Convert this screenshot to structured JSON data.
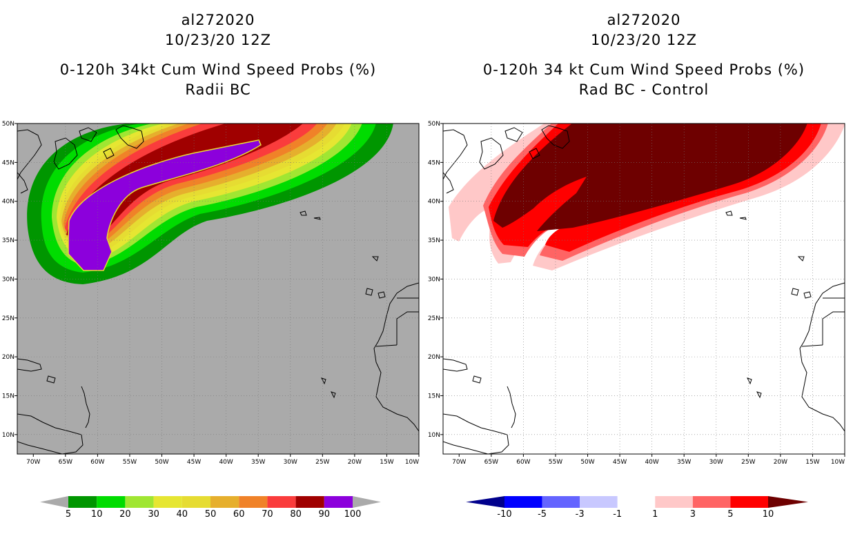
{
  "left_panel": {
    "title_line1": "al272020",
    "title_line2": "10/23/20 12Z",
    "title_line3": "0-120h 34kt Cum Wind Speed Probs (%)",
    "title_line4": "Radii BC",
    "background": "#aaaaaa",
    "colorbar": {
      "colors": [
        "#009600",
        "#00dc00",
        "#a0e632",
        "#e6e632",
        "#e6dc32",
        "#e6af2d",
        "#f08228",
        "#fa3c3c",
        "#a00000",
        "#8c00dc"
      ],
      "labels": [
        "5",
        "10",
        "20",
        "30",
        "40",
        "50",
        "60",
        "70",
        "80",
        "90",
        "100"
      ]
    }
  },
  "right_panel": {
    "title_line1": "al272020",
    "title_line2": "10/23/20 12Z",
    "title_line3": "0-120h 34 kt Cum Wind Speed Probs (%)",
    "title_line4": "Rad BC - Control",
    "background": "#ffffff",
    "colorbar": {
      "colors": [
        "#00008c",
        "#0000ff",
        "#6464ff",
        "#c8c8ff",
        "#ffffff",
        "#ffc8c8",
        "#ff6464",
        "#ff0000",
        "#6e0000"
      ],
      "labels": [
        "-10",
        "-5",
        "-3",
        "-1",
        "1",
        "3",
        "5",
        "10"
      ]
    }
  },
  "axes": {
    "lon_labels": [
      "70W",
      "65W",
      "60W",
      "55W",
      "50W",
      "45W",
      "40W",
      "35W",
      "30W",
      "25W",
      "20W",
      "15W",
      "10W"
    ],
    "lat_labels": [
      "50N",
      "45N",
      "40N",
      "35N",
      "30N",
      "25N",
      "20N",
      "15N",
      "10N"
    ]
  }
}
